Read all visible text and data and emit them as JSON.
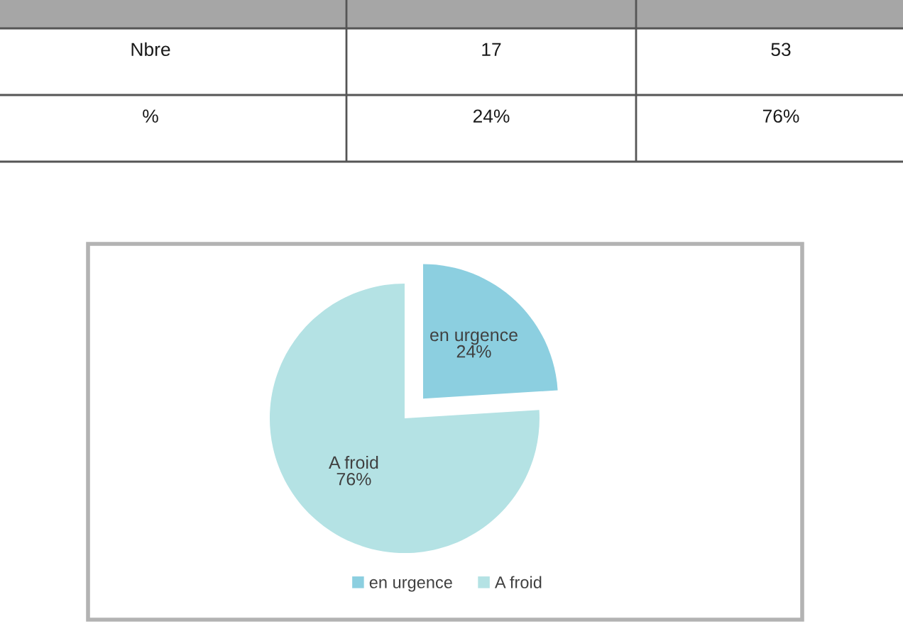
{
  "chart_data": [
    {
      "type": "other",
      "annotations": [
        "Nbre",
        "17",
        "53",
        "%",
        "24%",
        "76%"
      ]
    },
    {
      "type": "pie",
      "categories": [
        "en urgence",
        "A froid"
      ],
      "values": [
        24,
        76
      ],
      "value_labels": [
        "24%",
        "76%"
      ],
      "colors": [
        "#8ccfe0",
        "#b4e2e4"
      ],
      "legend": "bottom"
    }
  ]
}
